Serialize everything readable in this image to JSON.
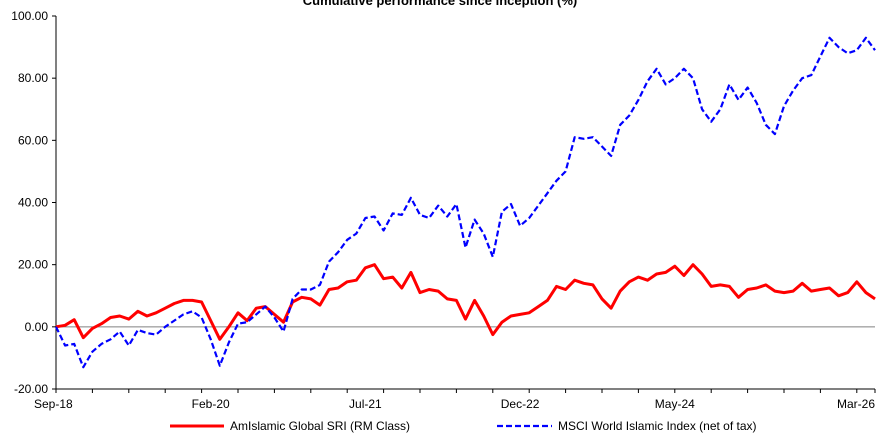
{
  "chart_data": {
    "type": "line",
    "title": "Cumulative performance since inception (%)",
    "xlabel": "",
    "ylabel": "",
    "ylim": [
      -20,
      100
    ],
    "yticks": [
      "-20.00",
      "0.00",
      "20.00",
      "40.00",
      "60.00",
      "80.00",
      "100.00"
    ],
    "ytick_values": [
      -20,
      0,
      20,
      40,
      60,
      80,
      100
    ],
    "x_tick_labels": [
      "Sep-18",
      "Feb-20",
      "Jul-21",
      "Dec-22",
      "May-24",
      "Mar-26"
    ],
    "x_tick_index": [
      0,
      17,
      34,
      51,
      68,
      90
    ],
    "x_count": 91,
    "grid": "none",
    "legend_position": "bottom",
    "series": [
      {
        "name": "AmIslamic Global SRI (RM Class)",
        "color": "#ff0000",
        "style": "solid",
        "values": [
          0,
          0.5,
          2.3,
          -3.5,
          -0.5,
          1,
          3,
          3.5,
          2.5,
          5,
          3.5,
          4.5,
          6,
          7.5,
          8.5,
          8.5,
          8,
          2,
          -4,
          0,
          4.5,
          2,
          6,
          6.5,
          4,
          1.5,
          8,
          9.5,
          9,
          7,
          12,
          12.5,
          14.5,
          15,
          19,
          20,
          15.5,
          16,
          12.5,
          17.5,
          11,
          12,
          11.5,
          9,
          8.5,
          2.5,
          8.5,
          3.5,
          -2.5,
          1.5,
          3.5,
          4,
          4.5,
          6.5,
          8.5,
          13,
          12,
          15,
          14,
          13.5,
          9,
          6,
          11.5,
          14.5,
          16,
          15,
          17,
          17.5,
          19.5,
          16.5,
          20,
          17,
          13,
          13.5,
          13,
          9.5,
          12,
          12.5,
          13.5,
          11.5,
          11,
          11.5,
          14,
          11.5,
          12,
          12.5,
          10,
          11,
          14.5,
          11,
          9
        ]
      },
      {
        "name": "MSCI World Islamic Index (net of tax)",
        "color": "#0000ff",
        "style": "dashed",
        "values": [
          0,
          -6,
          -5.5,
          -13,
          -8,
          -5.5,
          -4,
          -1.5,
          -6,
          -1,
          -2,
          -2.5,
          0,
          2,
          4,
          5,
          3,
          -4,
          -12.5,
          -5,
          1,
          1.5,
          4,
          6.5,
          3,
          -1.5,
          9,
          12,
          12,
          13.5,
          21,
          24,
          28,
          30,
          35,
          35.5,
          31,
          36.5,
          36,
          41.5,
          36,
          35,
          39,
          35.5,
          39.5,
          25.5,
          34.5,
          30,
          22.5,
          37,
          39.5,
          32.5,
          35,
          39,
          43,
          47,
          50,
          61,
          60.5,
          61,
          58,
          55,
          65,
          68,
          73,
          79,
          83,
          78,
          80,
          83,
          80,
          70,
          66,
          70,
          78,
          73,
          77,
          72,
          65,
          62,
          71,
          76,
          80,
          81,
          87,
          93,
          90,
          88,
          89,
          93,
          89
        ]
      }
    ]
  }
}
